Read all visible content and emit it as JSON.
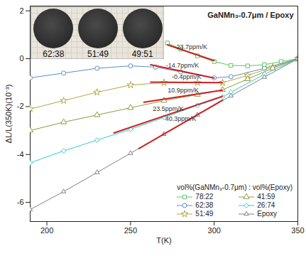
{
  "chart_data": {
    "type": "line",
    "title": "GaNMn₃-0.7μm / Epoxy",
    "x_label": "T(K)",
    "y_label": "ΔL/L(350K)(10⁻³)",
    "xlim": [
      190,
      350
    ],
    "ylim": [
      -6.8,
      2.2
    ],
    "xticks": [
      200,
      250,
      300,
      350
    ],
    "yticks": [
      -6,
      -4,
      -2,
      0,
      2
    ],
    "grid": false,
    "legend": "lower right",
    "legend_title": "vol%(GaNMn₃-0.7μm) : vol%(Epoxy)",
    "series": [
      {
        "name": "78:22",
        "color": "#5cc85c",
        "marker": "square",
        "x": [
          272,
          280,
          290,
          300,
          310,
          320,
          330,
          340,
          350
        ],
        "values": [
          0.66,
          0.4,
          0.12,
          -0.12,
          -0.28,
          -0.3,
          -0.25,
          -0.12,
          0
        ]
      },
      {
        "name": "62:38",
        "color": "#5b8fc7",
        "marker": "circle",
        "x": [
          190,
          210,
          230,
          250,
          265,
          280,
          300,
          310,
          330,
          350
        ],
        "values": [
          -0.8,
          -0.6,
          -0.4,
          -0.3,
          -0.35,
          -0.55,
          -0.8,
          -0.75,
          -0.4,
          0
        ]
      },
      {
        "name": "51:49",
        "color": "#b5a642",
        "marker": "star",
        "x": [
          190,
          210,
          230,
          250,
          270,
          290,
          305,
          320,
          335,
          350
        ],
        "values": [
          -2.1,
          -1.75,
          -1.4,
          -1.1,
          -1.0,
          -1.0,
          -1.0,
          -0.7,
          -0.35,
          0
        ]
      },
      {
        "name": "41:59",
        "color": "#8c9c3c",
        "marker": "triangle",
        "x": [
          190,
          210,
          230,
          250,
          270,
          290,
          305,
          320,
          335,
          350
        ],
        "values": [
          -3.0,
          -2.65,
          -2.35,
          -2.05,
          -1.75,
          -1.5,
          -1.3,
          -0.85,
          -0.4,
          0
        ]
      },
      {
        "name": "26:74",
        "color": "#33c8dc",
        "marker": "diamond2",
        "x": [
          190,
          210,
          230,
          250,
          270,
          290,
          305,
          310,
          330,
          350
        ],
        "values": [
          -4.35,
          -3.85,
          -3.4,
          -2.95,
          -2.45,
          -1.95,
          -1.6,
          -1.4,
          -0.65,
          0
        ]
      },
      {
        "name": "Epoxy",
        "color": "#808080",
        "marker": "triangle2",
        "x": [
          190,
          210,
          230,
          250,
          270,
          290,
          310,
          330,
          350
        ],
        "values": [
          -6.3,
          -5.55,
          -4.75,
          -3.95,
          -3.15,
          -2.35,
          -1.55,
          -0.77,
          0
        ]
      }
    ],
    "fits": [
      {
        "label": "-23.7ppm/K",
        "color": "#cc2222",
        "x": [
          272,
          300
        ],
        "values": [
          0.58,
          -0.08
        ]
      },
      {
        "label": "-14.7ppm/K",
        "color": "#cc2222",
        "x": [
          262,
          300
        ],
        "values": [
          -0.25,
          -0.81
        ]
      },
      {
        "label": "-0.4ppm/K",
        "color": "#cc2222",
        "x": [
          262,
          305
        ],
        "values": [
          -0.98,
          -1.0
        ]
      },
      {
        "label": "10.9ppm/K",
        "color": "#cc2222",
        "x": [
          258,
          305
        ],
        "values": [
          -1.82,
          -1.31
        ]
      },
      {
        "label": "23.5ppm/K",
        "color": "#cc2222",
        "x": [
          240,
          305
        ],
        "values": [
          -3.1,
          -1.57
        ]
      },
      {
        "label": "40.3ppm/K",
        "color": "#cc2222",
        "x": [
          255,
          305
        ],
        "values": [
          -3.75,
          -1.73
        ]
      }
    ],
    "inset_labels": [
      "62:38",
      "51:49",
      "49:51"
    ]
  }
}
